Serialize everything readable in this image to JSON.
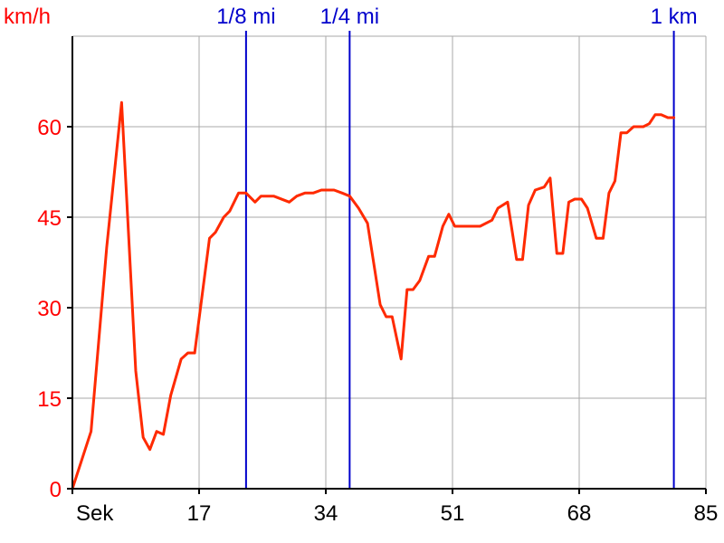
{
  "colors": {
    "speed": "#ff0000",
    "speed_line": "#ff2a00",
    "marker": "#0000cc",
    "grid": "#a8a8a8",
    "axis": "#000000"
  },
  "chart_data": {
    "type": "line",
    "title": "",
    "ylabel": "km/h",
    "xlabel": "Sek",
    "xlim": [
      0,
      85
    ],
    "ylim": [
      0,
      75
    ],
    "grid": true,
    "x_ticks": [
      {
        "value": 0,
        "label": "Sek"
      },
      {
        "value": 17,
        "label": "17"
      },
      {
        "value": 34,
        "label": "34"
      },
      {
        "value": 51,
        "label": "51"
      },
      {
        "value": 68,
        "label": "68"
      },
      {
        "value": 85,
        "label": "85"
      }
    ],
    "y_ticks": [
      {
        "value": 0,
        "label": "0"
      },
      {
        "value": 15,
        "label": "15"
      },
      {
        "value": 30,
        "label": "30"
      },
      {
        "value": 45,
        "label": "45"
      },
      {
        "value": 60,
        "label": "60"
      }
    ],
    "distance_markers": [
      {
        "x": 23.3,
        "label": "1/8 mi"
      },
      {
        "x": 37.2,
        "label": "1/4 mi"
      },
      {
        "x": 80.7,
        "label": "1 km"
      }
    ],
    "series": [
      {
        "values": [
          [
            0,
            0
          ],
          [
            2.5,
            9.5
          ],
          [
            4.6,
            40
          ],
          [
            6.6,
            64
          ],
          [
            8.5,
            19.5
          ],
          [
            9.5,
            8.5
          ],
          [
            10.4,
            6.5
          ],
          [
            11.3,
            9.5
          ],
          [
            12.2,
            9.0
          ],
          [
            13.2,
            15.5
          ],
          [
            14.6,
            21.5
          ],
          [
            15.5,
            22.5
          ],
          [
            16.4,
            22.5
          ],
          [
            18.4,
            41.5
          ],
          [
            19.2,
            42.5
          ],
          [
            20.3,
            45
          ],
          [
            21.1,
            46
          ],
          [
            22.3,
            49
          ],
          [
            23.3,
            49
          ],
          [
            24.5,
            47.5
          ],
          [
            25.3,
            48.5
          ],
          [
            27.0,
            48.5
          ],
          [
            29.1,
            47.5
          ],
          [
            30.1,
            48.5
          ],
          [
            31.2,
            49
          ],
          [
            32.3,
            49
          ],
          [
            33.4,
            49.5
          ],
          [
            35.1,
            49.5
          ],
          [
            36.2,
            49
          ],
          [
            37.2,
            48.5
          ],
          [
            38.4,
            46.5
          ],
          [
            39.6,
            44
          ],
          [
            41.3,
            30.5
          ],
          [
            42.1,
            28.5
          ],
          [
            42.9,
            28.5
          ],
          [
            44.1,
            21.5
          ],
          [
            44.9,
            33
          ],
          [
            45.7,
            33
          ],
          [
            46.6,
            34.5
          ],
          [
            47.8,
            38.5
          ],
          [
            48.6,
            38.5
          ],
          [
            49.7,
            43.5
          ],
          [
            50.5,
            45.5
          ],
          [
            51.3,
            43.5
          ],
          [
            52.6,
            43.5
          ],
          [
            54.7,
            43.5
          ],
          [
            56.3,
            44.5
          ],
          [
            57.1,
            46.5
          ],
          [
            58.4,
            47.5
          ],
          [
            59.6,
            38
          ],
          [
            60.4,
            38
          ],
          [
            61.2,
            47
          ],
          [
            62.1,
            49.5
          ],
          [
            63.3,
            50
          ],
          [
            64.1,
            51.5
          ],
          [
            65.0,
            39
          ],
          [
            65.8,
            39
          ],
          [
            66.6,
            47.5
          ],
          [
            67.4,
            48
          ],
          [
            68.3,
            48
          ],
          [
            69.1,
            46.5
          ],
          [
            70.3,
            41.5
          ],
          [
            71.2,
            41.5
          ],
          [
            72.0,
            49
          ],
          [
            72.8,
            51
          ],
          [
            73.6,
            59
          ],
          [
            74.4,
            59
          ],
          [
            75.3,
            60
          ],
          [
            76.6,
            60
          ],
          [
            77.4,
            60.5
          ],
          [
            78.2,
            62
          ],
          [
            79.0,
            62
          ],
          [
            79.9,
            61.5
          ],
          [
            80.7,
            61.5
          ]
        ]
      }
    ]
  }
}
